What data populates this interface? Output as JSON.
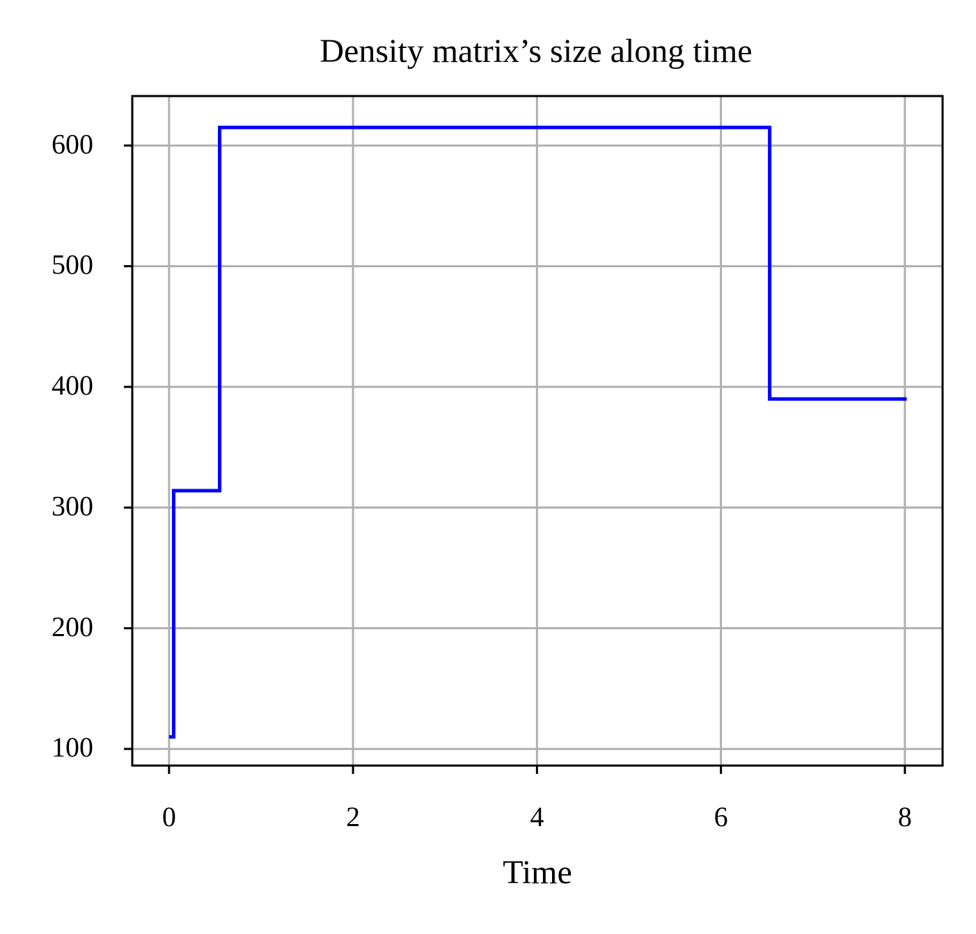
{
  "chart_data": {
    "type": "line",
    "title": "Density matrix’s size along time",
    "x_label": "Time",
    "x": [
      0,
      0.05,
      0.05,
      0.55,
      0.55,
      6.53,
      6.53,
      8.02
    ],
    "series": [
      {
        "color": "#0000ff",
        "values": [
          110,
          110,
          314,
          314,
          615,
          615,
          390,
          390
        ]
      }
    ],
    "xlim": [
      -0.4,
      8.41
    ],
    "ylim": [
      86.2,
      641
    ],
    "xticks": [
      0,
      2,
      4,
      6,
      8
    ],
    "yticks": [
      100,
      200,
      300,
      400,
      500,
      600
    ],
    "grid": true
  }
}
